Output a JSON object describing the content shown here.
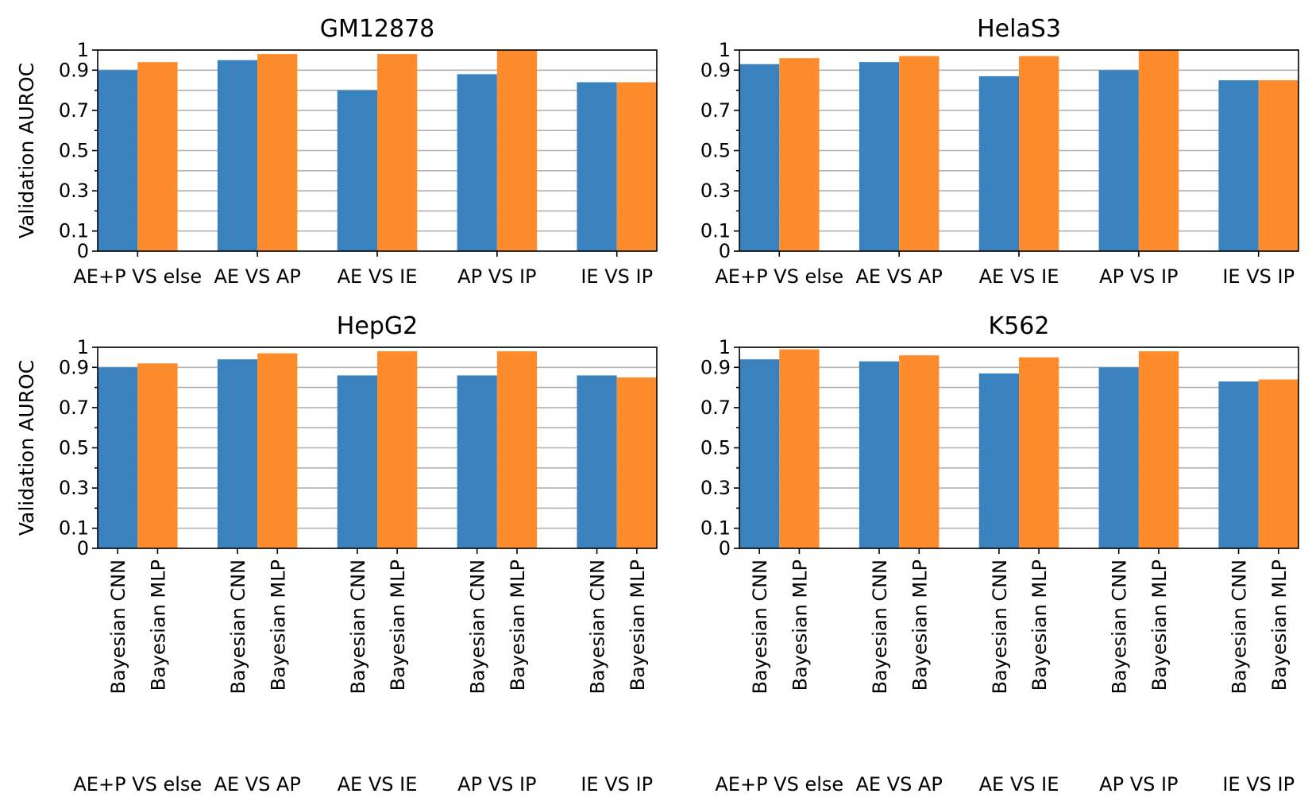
{
  "chart_data": {
    "type": "bar",
    "ylabel": "Validation AUROC",
    "ylim": [
      0,
      1
    ],
    "yticks": [
      0,
      0.1,
      0.3,
      0.5,
      0.7,
      0.9,
      1
    ],
    "ytick_labels": [
      "0",
      "0.1",
      "0.3",
      "0.5",
      "0.7",
      "0.9",
      "1"
    ],
    "minor_yticks": [
      0.2,
      0.4,
      0.6,
      0.8
    ],
    "grid": "horizontal",
    "categories": [
      "AE+P VS else",
      "AE VS AP",
      "AE VS IE",
      "AP VS IP",
      "IE VS IP"
    ],
    "series_labels": [
      "Bayesian CNN",
      "Bayesian MLP"
    ],
    "colors": [
      "#3a82be",
      "#ff8c2c"
    ],
    "panels": [
      {
        "title": "GM12878",
        "series": [
          {
            "name": "Bayesian CNN",
            "values": [
              0.9,
              0.95,
              0.8,
              0.88,
              0.84
            ]
          },
          {
            "name": "Bayesian MLP",
            "values": [
              0.94,
              0.98,
              0.98,
              1.0,
              0.84
            ]
          }
        ]
      },
      {
        "title": "HelaS3",
        "series": [
          {
            "name": "Bayesian CNN",
            "values": [
              0.93,
              0.94,
              0.87,
              0.9,
              0.85
            ]
          },
          {
            "name": "Bayesian MLP",
            "values": [
              0.96,
              0.97,
              0.97,
              1.0,
              0.85
            ]
          }
        ]
      },
      {
        "title": "HepG2",
        "series": [
          {
            "name": "Bayesian CNN",
            "values": [
              0.9,
              0.94,
              0.86,
              0.86,
              0.86
            ]
          },
          {
            "name": "Bayesian MLP",
            "values": [
              0.92,
              0.97,
              0.98,
              0.98,
              0.85
            ]
          }
        ]
      },
      {
        "title": "K562",
        "series": [
          {
            "name": "Bayesian CNN",
            "values": [
              0.94,
              0.93,
              0.87,
              0.9,
              0.83
            ]
          },
          {
            "name": "Bayesian MLP",
            "values": [
              0.99,
              0.96,
              0.95,
              0.98,
              0.84
            ]
          }
        ]
      }
    ]
  }
}
